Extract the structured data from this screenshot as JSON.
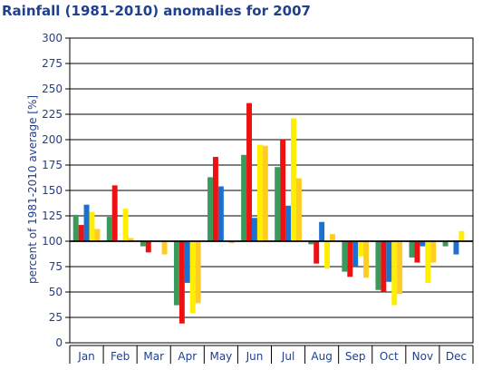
{
  "chart_data": {
    "type": "bar",
    "title": "Rainfall (1981-2010) anomalies for 2007",
    "xlabel": "",
    "ylabel": "percent of 1981-2010 average [%]",
    "ylim": [
      0,
      300
    ],
    "yticks": [
      0,
      25,
      50,
      75,
      100,
      125,
      150,
      175,
      200,
      225,
      250,
      275,
      300
    ],
    "baseline": 100,
    "grid": true,
    "categories": [
      "Jan",
      "Feb",
      "Mar",
      "Apr",
      "May",
      "Jun",
      "Jul",
      "Aug",
      "Sep",
      "Oct",
      "Nov",
      "Dec"
    ],
    "series": [
      {
        "color": "#3a9a5c",
        "values": [
          126,
          124,
          95,
          37,
          163,
          185,
          173,
          97,
          70,
          52,
          84,
          95
        ]
      },
      {
        "color": "#ee1111",
        "values": [
          116,
          155,
          89,
          19,
          183,
          236,
          200,
          78,
          65,
          50,
          79,
          100
        ]
      },
      {
        "color": "#1d6fd0",
        "values": [
          136,
          100,
          100,
          59,
          154,
          123,
          135,
          119,
          75,
          60,
          95,
          87
        ]
      },
      {
        "color": "#ffee00",
        "values": [
          129,
          132,
          100,
          29,
          100,
          195,
          221,
          73,
          85,
          37,
          59,
          110
        ]
      },
      {
        "color": "#ffcc22",
        "values": [
          112,
          103,
          87,
          39,
          98,
          194,
          162,
          107,
          64,
          48,
          79,
          100
        ]
      }
    ]
  }
}
